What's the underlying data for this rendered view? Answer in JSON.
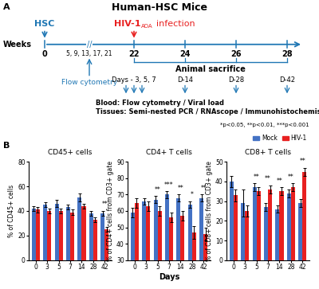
{
  "annotations": [
    "A",
    "B",
    "*p<0.05, **p<0.01, ***p<0.001"
  ],
  "chart_data": [
    {
      "type": "timeline",
      "title": "Human-HSC Mice",
      "xlabel": "Weeks",
      "categories": [
        "0",
        "22",
        "24",
        "26",
        "28"
      ],
      "annotations": [
        "//",
        "HSC",
        "HIV-1",
        "ADA",
        "infection",
        "5, 9, 13, 17, 21",
        "Flow cytometry",
        "Animal sacrifice",
        "Days - 3, 5, 7",
        "D-14",
        "D-28",
        "D-42",
        "Blood: Flow cytometry / Viral load",
        "Tissues: Semi-nested PCR / RNAscope / Immunohistochemistry"
      ]
    },
    {
      "type": "bar",
      "title": "CD45+ cells",
      "ylabel": "% of CD45+ cells",
      "categories": [
        "0",
        "3",
        "5",
        "7",
        "14",
        "28",
        "42"
      ],
      "series": [
        {
          "name": "Mock",
          "color": "#4472C4",
          "values": [
            42,
            45,
            46,
            43,
            51,
            38,
            38
          ],
          "errors": [
            2,
            2,
            3,
            2,
            3,
            2,
            2
          ]
        },
        {
          "name": "HIV-1",
          "color": "#E82020",
          "values": [
            41,
            40,
            40,
            39,
            44,
            33,
            25
          ],
          "errors": [
            2,
            2,
            2,
            2,
            2,
            2,
            2
          ]
        }
      ],
      "ylim": [
        0,
        80
      ],
      "yticks": [
        0,
        20,
        40,
        60,
        80
      ],
      "annotations": [
        {
          "category": "42",
          "text": "**"
        }
      ]
    },
    {
      "type": "bar",
      "title": "CD4+ T cells",
      "ylabel": "% of CD4+ cells from CD3+ gate",
      "xlabel": "Days",
      "categories": [
        "0",
        "3",
        "5",
        "7",
        "14",
        "28",
        "42"
      ],
      "series": [
        {
          "name": "Mock",
          "color": "#4472C4",
          "values": [
            59,
            66,
            67,
            70,
            68,
            64,
            68
          ],
          "errors": [
            3,
            2,
            2,
            2,
            2,
            2,
            2
          ]
        },
        {
          "name": "HIV-1",
          "color": "#E82020",
          "values": [
            65,
            63,
            60,
            56,
            57,
            47,
            46
          ],
          "errors": [
            3,
            3,
            3,
            3,
            3,
            4,
            4
          ]
        }
      ],
      "ylim": [
        30,
        90
      ],
      "yticks": [
        30,
        40,
        50,
        60,
        70,
        80,
        90
      ],
      "annotations": [
        {
          "category": "5",
          "text": "**"
        },
        {
          "category": "7",
          "text": "***"
        },
        {
          "category": "14",
          "text": "**"
        },
        {
          "category": "28",
          "text": "*"
        },
        {
          "category": "42",
          "text": "**"
        }
      ]
    },
    {
      "type": "bar",
      "title": "CD8+ T cells",
      "ylabel": "% of CD8+ cells from CD3+ gate",
      "categories": [
        "0",
        "3",
        "5",
        "7",
        "14",
        "28",
        "42"
      ],
      "series": [
        {
          "name": "Mock",
          "color": "#4472C4",
          "values": [
            40,
            29,
            37,
            27,
            26,
            34,
            29
          ],
          "errors": [
            3,
            7,
            2,
            2,
            2,
            2,
            2
          ]
        },
        {
          "name": "HIV-1",
          "color": "#E82020",
          "values": [
            33,
            25,
            35,
            36,
            35,
            37,
            45
          ],
          "errors": [
            3,
            3,
            2,
            2,
            2,
            2,
            2
          ]
        }
      ],
      "ylim": [
        0,
        50
      ],
      "yticks": [
        0,
        10,
        20,
        30,
        40,
        50
      ],
      "legend": "upper right",
      "annotations": [
        {
          "category": "5",
          "text": "**"
        },
        {
          "category": "7",
          "text": "**"
        },
        {
          "category": "14",
          "text": "**"
        },
        {
          "category": "28",
          "text": "**"
        },
        {
          "category": "42",
          "text": "**"
        }
      ]
    }
  ]
}
